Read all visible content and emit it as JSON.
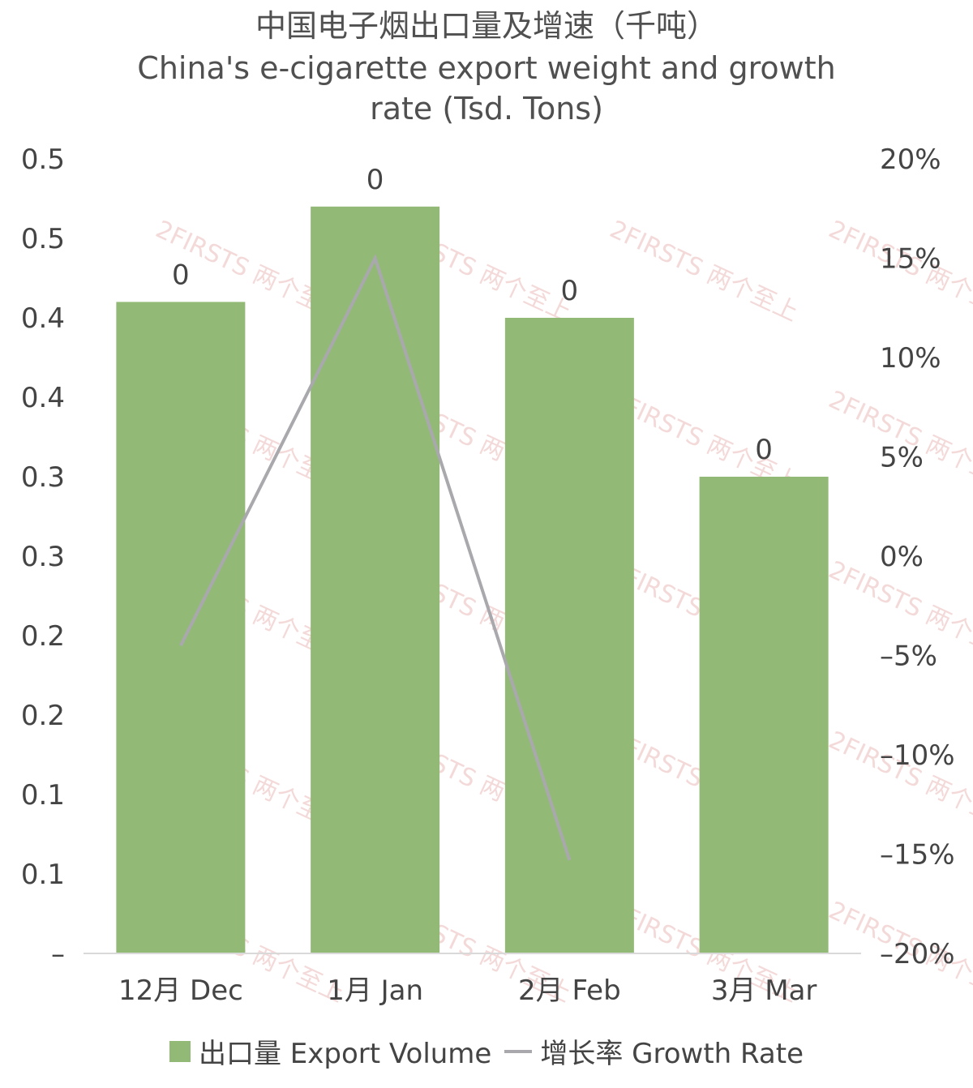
{
  "titles": {
    "zh": "中国电子烟出口量及增速（千吨）",
    "en_line1": "China's e-cigarette export weight and growth",
    "en_line2": "rate (Tsd. Tons)"
  },
  "watermark_text": "2FIRSTS 两个至上",
  "legend": {
    "bar_label": "出口量 Export Volume",
    "line_label": "增长率 Growth Rate"
  },
  "chart_data": {
    "type": "bar",
    "categories": [
      "12月 Dec",
      "1月 Jan",
      "2月 Feb",
      "3月 Mar"
    ],
    "series": [
      {
        "name": "出口量 Export Volume",
        "kind": "bar",
        "axis": "left",
        "values": [
          0.41,
          0.47,
          0.4,
          0.3
        ],
        "data_labels": [
          "0",
          "0",
          "0",
          "0"
        ],
        "color": "#93b977"
      },
      {
        "name": "增长率 Growth Rate",
        "kind": "line",
        "axis": "right",
        "values": [
          -0.045,
          0.15,
          -0.153,
          null
        ],
        "color": "#a9a9ad"
      }
    ],
    "left_axis": {
      "range": [
        0,
        0.5
      ],
      "tick_labels": [
        "–",
        "0.1",
        "0.1",
        "0.2",
        "0.2",
        "0.3",
        "0.3",
        "0.4",
        "0.4",
        "0.5",
        "0.5"
      ]
    },
    "right_axis": {
      "range": [
        -0.2,
        0.2
      ],
      "tick_labels": [
        "–20%",
        "–15%",
        "–10%",
        "–5%",
        "0%",
        "5%",
        "10%",
        "15%",
        "20%"
      ]
    },
    "grid": false,
    "legend_position": "bottom"
  }
}
